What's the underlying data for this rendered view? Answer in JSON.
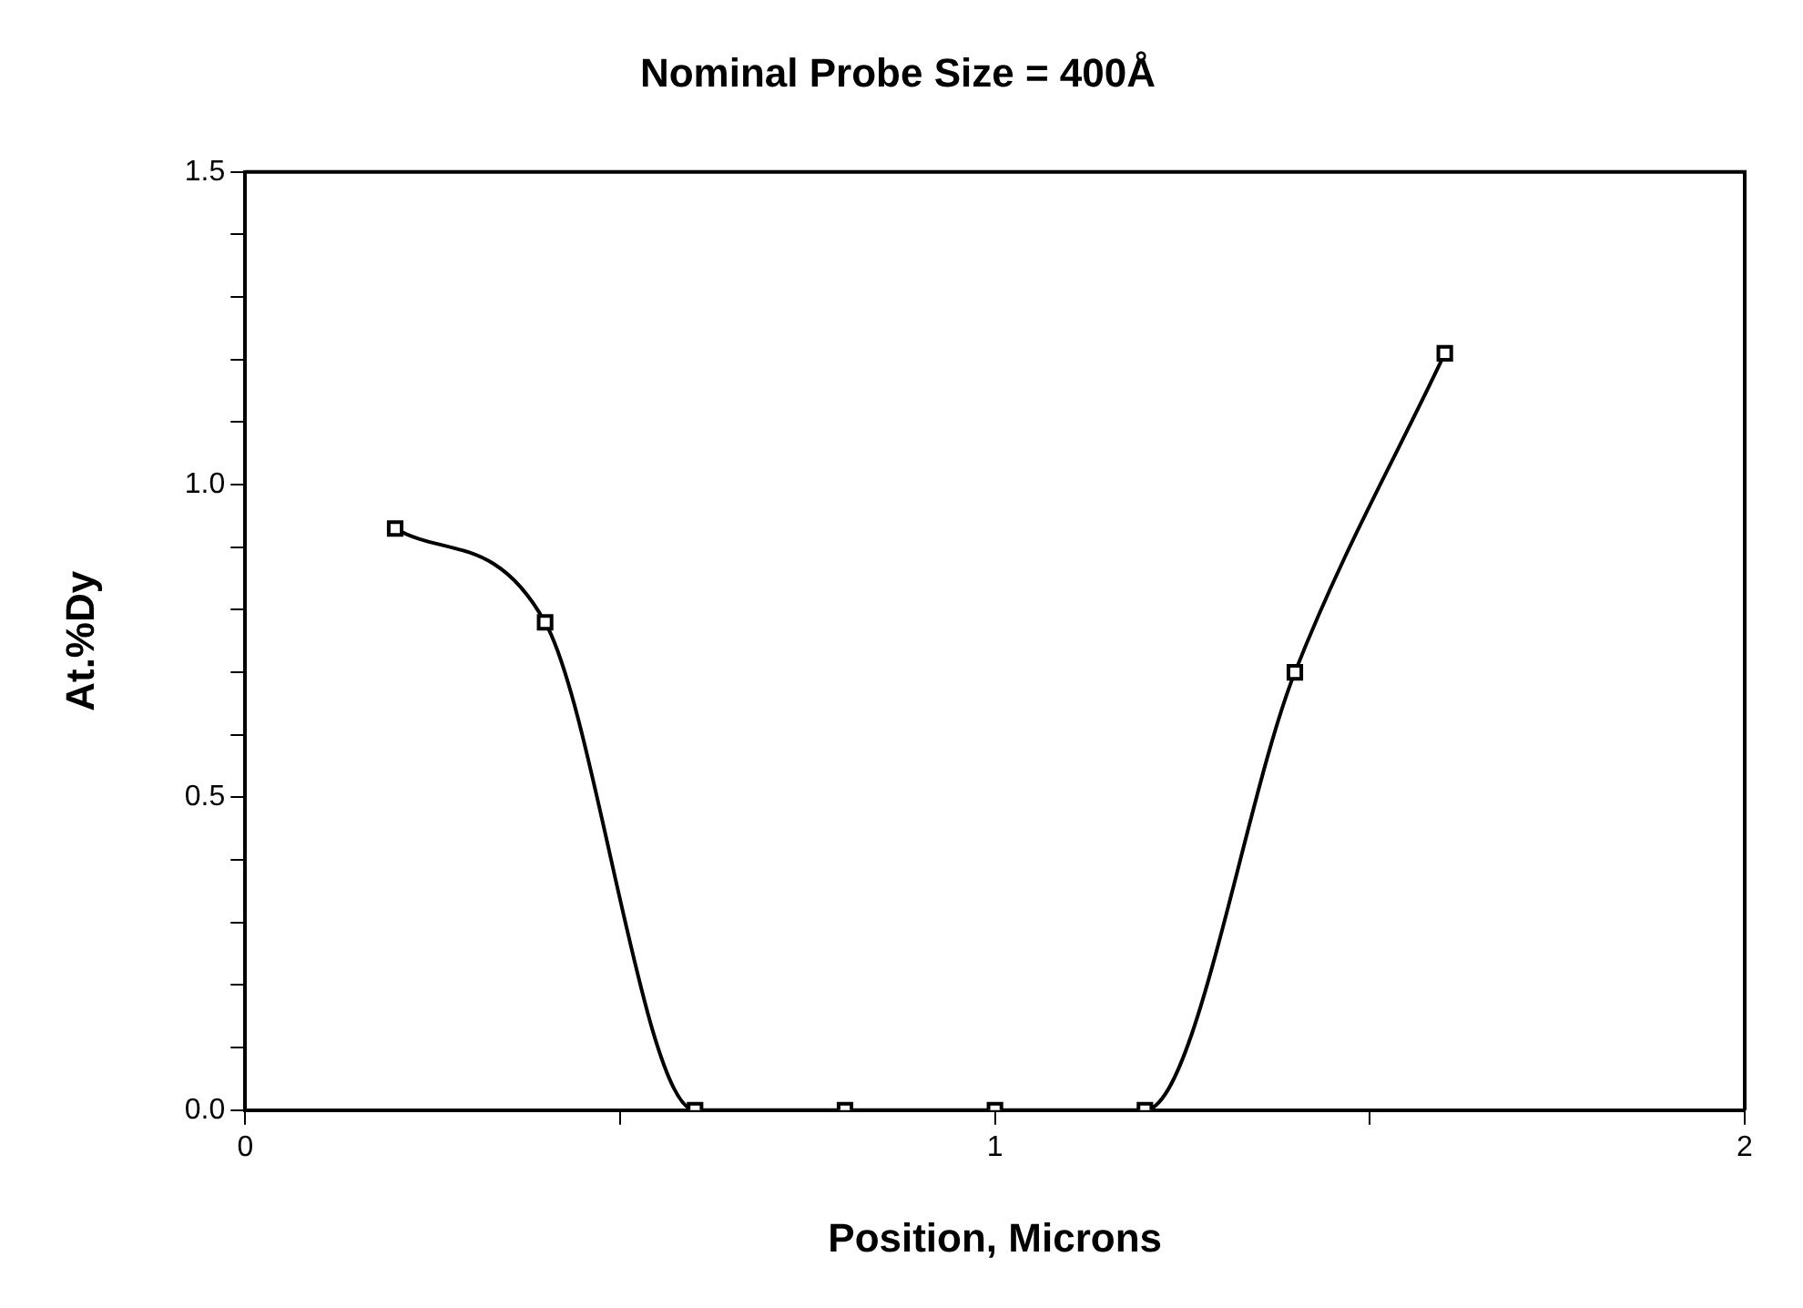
{
  "chart_data": {
    "type": "line",
    "title": "Nominal Probe Size = 400Å",
    "xlabel": "Position, Microns",
    "ylabel": "At.%Dy",
    "x": [
      0.2,
      0.4,
      0.6,
      0.8,
      1.0,
      1.2,
      1.4,
      1.6
    ],
    "series": [
      {
        "color": "#000000",
        "values": [
          0.93,
          0.78,
          0,
          0,
          0,
          0,
          0.7,
          1.21
        ]
      }
    ],
    "xlim": [
      0,
      2
    ],
    "xticks": [
      0,
      {
        "value": 0.5,
        "label": null
      },
      1,
      {
        "value": 1.5,
        "label": null
      },
      2
    ],
    "ylim": [
      0,
      1.5
    ],
    "yticks": [
      {
        "value": 0,
        "label": "0.0"
      },
      {
        "value": 0.1,
        "label": null
      },
      {
        "value": 0.2,
        "label": null
      },
      {
        "value": 0.3,
        "label": null
      },
      {
        "value": 0.4,
        "label": null
      },
      {
        "value": 0.5,
        "label": "0.5"
      },
      {
        "value": 0.6,
        "label": null
      },
      {
        "value": 0.7,
        "label": null
      },
      {
        "value": 0.8,
        "label": null
      },
      {
        "value": 0.9,
        "label": null
      },
      {
        "value": 1.0,
        "label": "1.0"
      },
      {
        "value": 1.1,
        "label": null
      },
      {
        "value": 1.2,
        "label": null
      },
      {
        "value": 1.3,
        "label": null
      },
      {
        "value": 1.4,
        "label": null
      },
      {
        "value": 1.5,
        "label": "1.5"
      }
    ],
    "grid": false,
    "legend": false,
    "marker": "square",
    "line_style": "solid"
  }
}
